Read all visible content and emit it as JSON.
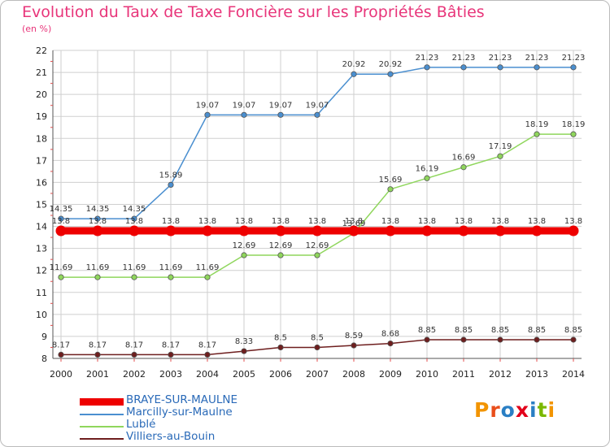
{
  "title": "Evolution du Taux de Taxe Foncière sur les Propriétés Bâties",
  "unit_label": "(en %)",
  "logo": {
    "text": "Proxiti",
    "colors": [
      "#f29400",
      "#e94e1b",
      "#2a7fc4",
      "#e2001a",
      "#2a7fc4",
      "#7ab800",
      "#f29400"
    ]
  },
  "chart_data": {
    "type": "line",
    "title": "Evolution du Taux de Taxe Foncière sur les Propriétés Bâties",
    "ylabel": "(en %)",
    "xlabel": "",
    "x": [
      "2000",
      "2001",
      "2002",
      "2003",
      "2004",
      "2005",
      "2006",
      "2007",
      "2008",
      "2009",
      "2010",
      "2011",
      "2012",
      "2013",
      "2014"
    ],
    "ylim": [
      8,
      22
    ],
    "yticks": [
      "8",
      "9",
      "10",
      "11",
      "12",
      "13",
      "14",
      "15",
      "16",
      "17",
      "18",
      "19",
      "20",
      "21",
      "22"
    ],
    "grid": true,
    "legend_position": "bottom-left",
    "series": [
      {
        "name": "BRAYE-SUR-MAULNE",
        "color": "#ee0000",
        "values": [
          13.8,
          13.8,
          13.8,
          13.8,
          13.8,
          13.8,
          13.8,
          13.8,
          13.8,
          13.8,
          13.8,
          13.8,
          13.8,
          13.8,
          13.8
        ],
        "labels": [
          "13.8",
          "13.8",
          "13.8",
          "13.8",
          "13.8",
          "13.8",
          "13.8",
          "13.8",
          "13.8",
          "13.8",
          "13.8",
          "13.8",
          "13.8",
          "13.8",
          "13.8"
        ]
      },
      {
        "name": "Marcilly-sur-Maulne",
        "color": "#4a8fd0",
        "values": [
          14.35,
          14.35,
          14.35,
          15.89,
          19.07,
          19.07,
          19.07,
          19.07,
          20.92,
          20.92,
          21.23,
          21.23,
          21.23,
          21.23,
          21.23
        ],
        "labels": [
          "14.35",
          "14.35",
          "14.35",
          "15.89",
          "19.07",
          "19.07",
          "19.07",
          "19.07",
          "20.92",
          "20.92",
          "21.23",
          "21.23",
          "21.23",
          "21.23",
          "21.23"
        ]
      },
      {
        "name": "Lublé",
        "color": "#8fd65c",
        "values": [
          11.69,
          11.69,
          11.69,
          11.69,
          11.69,
          12.69,
          12.69,
          12.69,
          13.69,
          15.69,
          16.19,
          16.69,
          17.19,
          18.19,
          18.19
        ],
        "labels": [
          "11.69",
          "11.69",
          "11.69",
          "11.69",
          "11.69",
          "12.69",
          "12.69",
          "12.69",
          "13.69",
          "15.69",
          "16.19",
          "16.69",
          "17.19",
          "18.19",
          "18.19"
        ]
      },
      {
        "name": "Villiers-au-Bouin",
        "color": "#6e1e1e",
        "values": [
          8.17,
          8.17,
          8.17,
          8.17,
          8.17,
          8.33,
          8.5,
          8.5,
          8.59,
          8.68,
          8.85,
          8.85,
          8.85,
          8.85,
          8.85
        ],
        "labels": [
          "8.17",
          "8.17",
          "8.17",
          "8.17",
          "8.17",
          "8.33",
          "8.5",
          "8.5",
          "8.59",
          "8.68",
          "8.85",
          "8.85",
          "8.85",
          "8.85",
          "8.85"
        ]
      }
    ]
  }
}
